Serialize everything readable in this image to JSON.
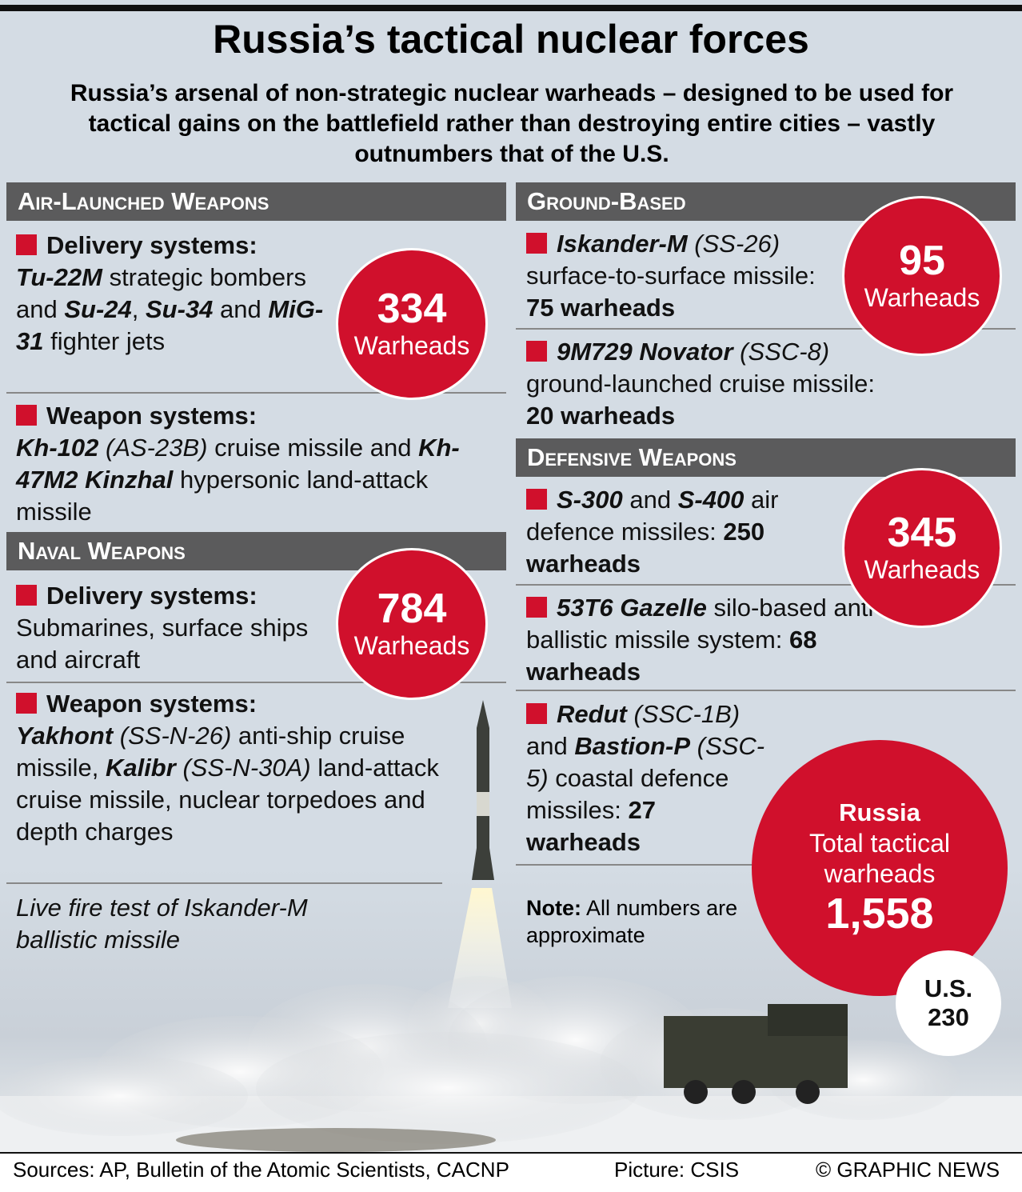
{
  "title": "Russia’s tactical nuclear forces",
  "subtitle": "Russia’s arsenal of non-strategic nuclear warheads – designed to be used for tactical gains on the battlefield rather than destroying entire cities – vastly outnumbers that of the U.S.",
  "sections": [
    {
      "heading": "Air-Launched Weapons",
      "count": 334,
      "count_label": "Warheads",
      "items": [
        {
          "label": "Delivery systems:",
          "runs": [
            {
              "text": "Tu-22M",
              "style": "bold-italic"
            },
            {
              "text": " strategic bombers and ",
              "style": "regular"
            },
            {
              "text": "Su-24",
              "style": "bold-italic"
            },
            {
              "text": ", ",
              "style": "regular"
            },
            {
              "text": "Su-34",
              "style": "bold-italic"
            },
            {
              "text": " and ",
              "style": "regular"
            },
            {
              "text": "MiG-31",
              "style": "bold-italic"
            },
            {
              "text": " fighter jets",
              "style": "regular"
            }
          ]
        },
        {
          "label": "Weapon systems:",
          "runs": [
            {
              "text": "Kh-102",
              "style": "bold-italic"
            },
            {
              "text": " ",
              "style": "regular"
            },
            {
              "text": "(AS-23B)",
              "style": "italic"
            },
            {
              "text": " cruise missile and ",
              "style": "regular"
            },
            {
              "text": "Kh-47M2 Kinzhal",
              "style": "bold-italic"
            },
            {
              "text": " hypersonic land-attack missile",
              "style": "regular"
            }
          ]
        }
      ]
    },
    {
      "heading": "Naval Weapons",
      "count": 784,
      "count_label": "Warheads",
      "items": [
        {
          "label": "Delivery systems:",
          "runs": [
            {
              "text": "Submarines, surface ships and aircraft",
              "style": "regular"
            }
          ]
        },
        {
          "label": "Weapon systems:",
          "runs": [
            {
              "text": "Yakhont",
              "style": "bold-italic"
            },
            {
              "text": " ",
              "style": "regular"
            },
            {
              "text": "(SS-N-26)",
              "style": "italic"
            },
            {
              "text": " anti-ship cruise missile, ",
              "style": "regular"
            },
            {
              "text": "Kalibr",
              "style": "bold-italic"
            },
            {
              "text": " ",
              "style": "regular"
            },
            {
              "text": "(SS-N-30A)",
              "style": "italic"
            },
            {
              "text": " land-attack cruise missile, nuclear torpedoes and depth charges",
              "style": "regular"
            }
          ]
        }
      ]
    },
    {
      "heading": "Ground-Based",
      "count": 95,
      "count_label": "Warheads",
      "items": [
        {
          "runs": [
            {
              "text": "Iskander-M",
              "style": "bold-italic"
            },
            {
              "text": " ",
              "style": "regular"
            },
            {
              "text": "(SS-26)",
              "style": "italic"
            },
            {
              "text": " surface-to-surface missile: ",
              "style": "regular"
            },
            {
              "text": "75 warheads",
              "style": "bold"
            }
          ]
        },
        {
          "runs": [
            {
              "text": "9M729 Novator",
              "style": "bold-italic"
            },
            {
              "text": " ",
              "style": "regular"
            },
            {
              "text": "(SSC-8)",
              "style": "italic"
            },
            {
              "text": " ground-launched cruise missile: ",
              "style": "regular"
            },
            {
              "text": "20 warheads",
              "style": "bold"
            }
          ]
        }
      ]
    },
    {
      "heading": "Defensive Weapons",
      "count": 345,
      "count_label": "Warheads",
      "items": [
        {
          "runs": [
            {
              "text": "S-300",
              "style": "bold-italic"
            },
            {
              "text": " and ",
              "style": "regular"
            },
            {
              "text": "S-400",
              "style": "bold-italic"
            },
            {
              "text": " air defence missiles: ",
              "style": "regular"
            },
            {
              "text": "250 warheads",
              "style": "bold"
            }
          ]
        },
        {
          "runs": [
            {
              "text": "53T6 Gazelle",
              "style": "bold-italic"
            },
            {
              "text": " silo-based anti-ballistic missile system: ",
              "style": "regular"
            },
            {
              "text": "68 warheads",
              "style": "bold"
            }
          ]
        },
        {
          "runs": [
            {
              "text": "Redut",
              "style": "bold-italic"
            },
            {
              "text": " ",
              "style": "regular"
            },
            {
              "text": "(SSC-1B)",
              "style": "italic"
            },
            {
              "text": " and ",
              "style": "regular"
            },
            {
              "text": "Bastion-P",
              "style": "bold-italic"
            },
            {
              "text": " ",
              "style": "regular"
            },
            {
              "text": "(SSC-5)",
              "style": "italic"
            },
            {
              "text": " coastal defence missiles: ",
              "style": "regular"
            },
            {
              "text": "27 warheads",
              "style": "bold"
            }
          ]
        }
      ]
    }
  ],
  "caption": "Live fire test of Iskander-M ballistic missile",
  "note": {
    "label": "Note:",
    "text": " All numbers are approximate"
  },
  "russia": {
    "name": "Russia",
    "label": "Total tactical warheads",
    "total": {
      "value": 1558,
      "label": "1,558"
    }
  },
  "us": {
    "name": "U.S.",
    "total": 230
  },
  "footer": {
    "sources": "Sources: AP, Bulletin of the Atomic Scientists, CACNP",
    "picture": "Picture: CSIS",
    "credit": "© GRAPHIC NEWS"
  }
}
